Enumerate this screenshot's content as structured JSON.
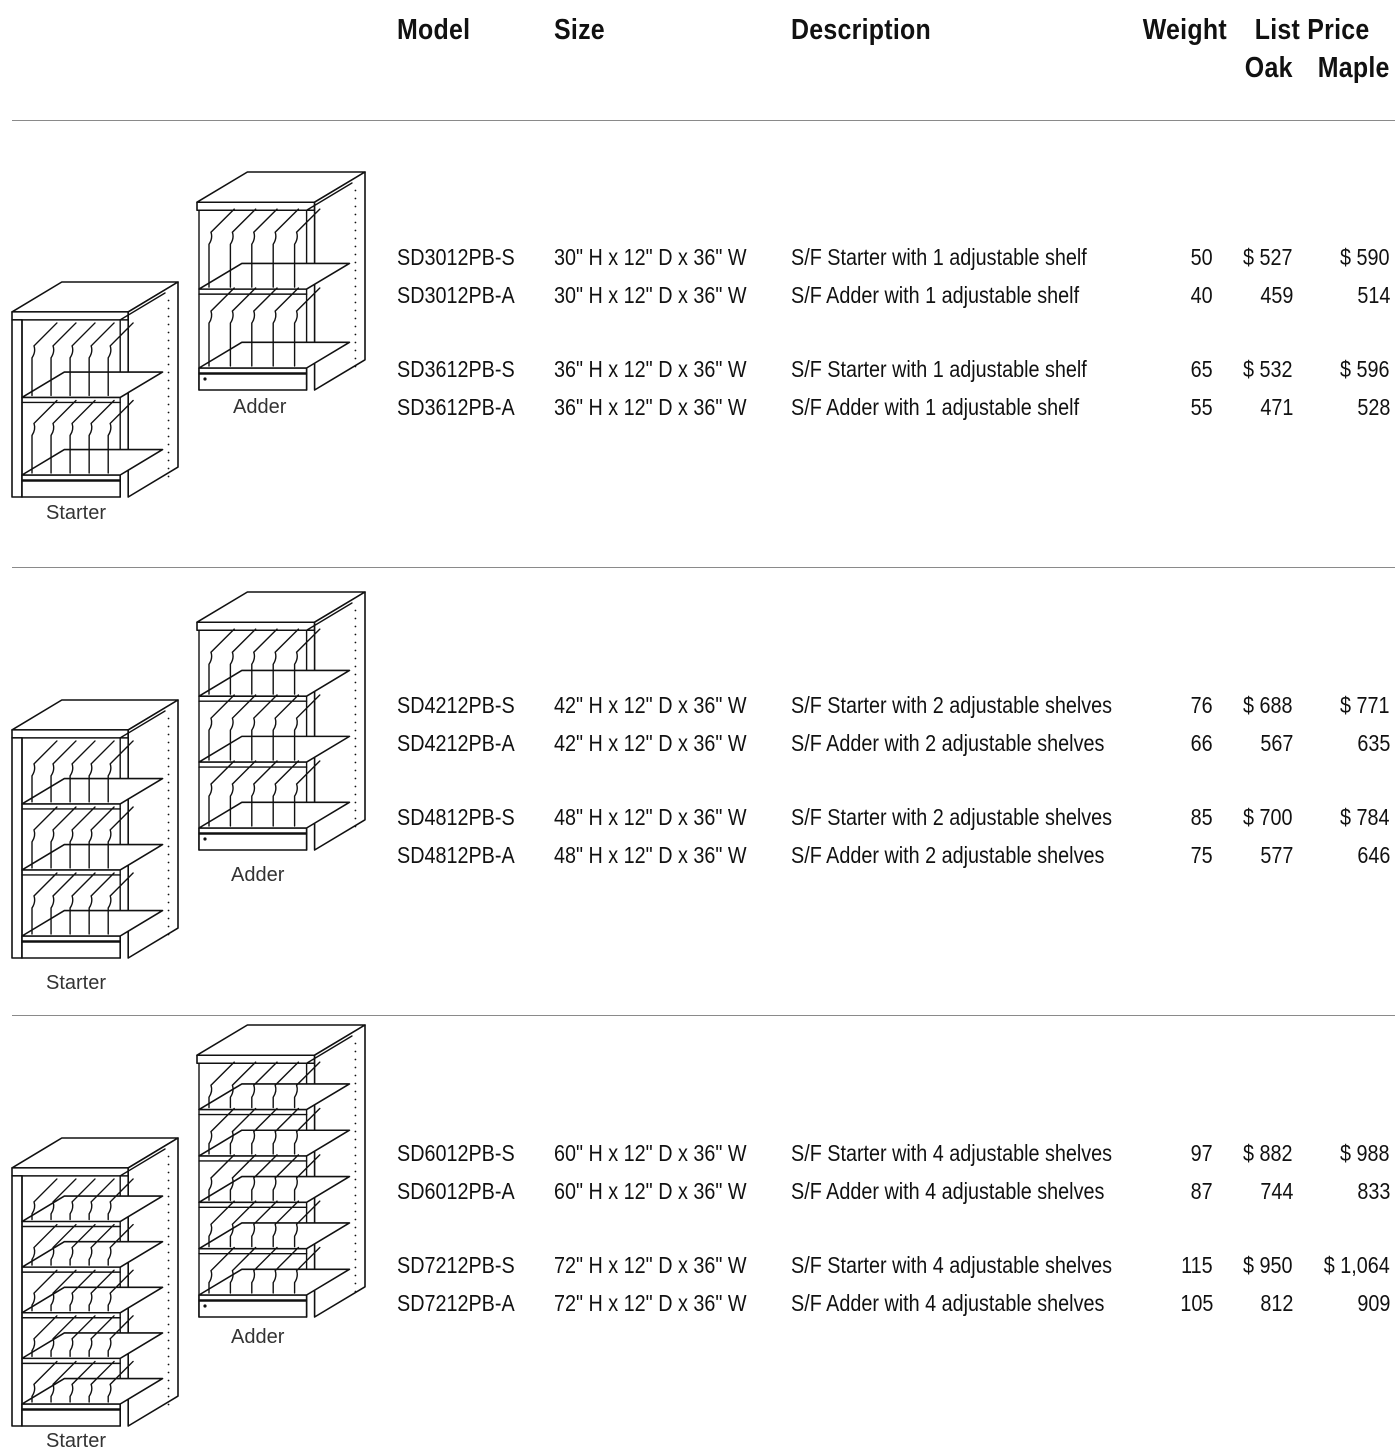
{
  "headers": {
    "model": "Model",
    "size": "Size",
    "description": "Description",
    "weight": "Weight",
    "list_price": "List Price",
    "oak": "Oak",
    "maple": "Maple"
  },
  "sections": [
    {
      "shelves": 2,
      "starter_label": "Starter",
      "adder_label": "Adder",
      "rows": [
        {
          "model": "SD3012PB-S",
          "size": "30\" H x 12\" D x 36\" W",
          "description": "S/F Starter with 1 adjustable shelf",
          "weight": "50",
          "oak": "$ 527",
          "maple": "$ 590"
        },
        {
          "model": "SD3012PB-A",
          "size": "30\" H x 12\" D x 36\" W",
          "description": "S/F Adder with 1 adjustable shelf",
          "weight": "40",
          "oak": "459",
          "maple": "514"
        },
        {
          "model": "SD3612PB-S",
          "size": "36\" H x 12\" D x 36\" W",
          "description": "S/F Starter with 1 adjustable shelf",
          "weight": "65",
          "oak": "$ 532",
          "maple": "$ 596"
        },
        {
          "model": "SD3612PB-A",
          "size": "36\" H x 12\" D x 36\" W",
          "description": "S/F Adder with 1 adjustable shelf",
          "weight": "55",
          "oak": "471",
          "maple": "528"
        }
      ]
    },
    {
      "shelves": 3,
      "starter_label": "Starter",
      "adder_label": "Adder",
      "rows": [
        {
          "model": "SD4212PB-S",
          "size": "42\" H x 12\" D x 36\" W",
          "description": "S/F Starter with 2 adjustable shelves",
          "weight": "76",
          "oak": "$ 688",
          "maple": "$ 771"
        },
        {
          "model": "SD4212PB-A",
          "size": "42\" H x 12\" D x 36\" W",
          "description": "S/F Adder with 2 adjustable shelves",
          "weight": "66",
          "oak": "567",
          "maple": "635"
        },
        {
          "model": "SD4812PB-S",
          "size": "48\" H x 12\" D x 36\" W",
          "description": "S/F Starter with 2 adjustable shelves",
          "weight": "85",
          "oak": "$ 700",
          "maple": "$ 784"
        },
        {
          "model": "SD4812PB-A",
          "size": "48\" H x 12\" D x 36\" W",
          "description": "S/F Adder with 2 adjustable shelves",
          "weight": "75",
          "oak": "577",
          "maple": "646"
        }
      ]
    },
    {
      "shelves": 5,
      "starter_label": "Starter",
      "adder_label": "Adder",
      "rows": [
        {
          "model": "SD6012PB-S",
          "size": "60\" H x 12\" D x 36\" W",
          "description": "S/F Starter with 4 adjustable shelves",
          "weight": "97",
          "oak": "$ 882",
          "maple": "$ 988"
        },
        {
          "model": "SD6012PB-A",
          "size": "60\" H x 12\" D x 36\" W",
          "description": "S/F Adder with 4 adjustable shelves",
          "weight": "87",
          "oak": "744",
          "maple": "833"
        },
        {
          "model": "SD7212PB-S",
          "size": "72\" H x 12\" D x 36\" W",
          "description": "S/F Starter with 4 adjustable shelves",
          "weight": "115",
          "oak": "$ 950",
          "maple": "$ 1,064"
        },
        {
          "model": "SD7212PB-A",
          "size": "72\" H x 12\" D x 36\" W",
          "description": "S/F Adder with 4 adjustable shelves",
          "weight": "105",
          "oak": "812",
          "maple": "909"
        }
      ]
    }
  ]
}
